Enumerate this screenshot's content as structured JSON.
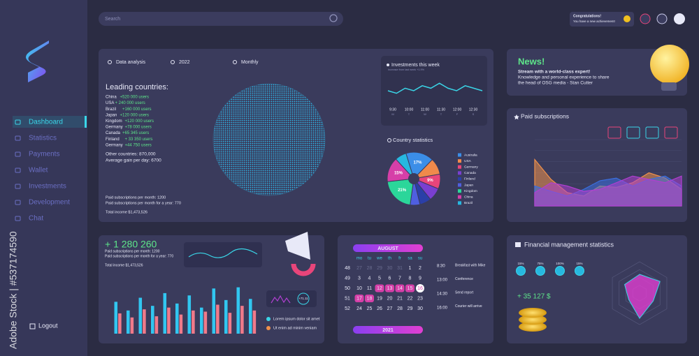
{
  "watermark": "Adobe Stock | #537174590",
  "search": {
    "placeholder": "Search"
  },
  "notification": {
    "title": "Congratulations!",
    "text": "You have a new achievement!"
  },
  "nav": [
    "Dashboard",
    "Statistics",
    "Payments",
    "Wallet",
    "Investments",
    "Development",
    "Chat"
  ],
  "logout": "Logout",
  "analysis": {
    "tabs": [
      "Data analysis",
      "2022",
      "Monthly"
    ],
    "heading": "Leading countries:",
    "countries": [
      {
        "name": "China",
        "gain": "+520 000 users"
      },
      {
        "name": "USA",
        "gain": "+ 240 000 users"
      },
      {
        "name": "Brazil",
        "gain": "+160 000 users"
      },
      {
        "name": "Japan",
        "gain": "+120 000 users"
      },
      {
        "name": "Kingdom",
        "gain": "+120 000 users"
      },
      {
        "name": "Germany",
        "gain": "+78 000 users"
      },
      {
        "name": "Canada",
        "gain": "+65 345 users"
      },
      {
        "name": "Finland",
        "gain": "+ 33 350 users"
      },
      {
        "name": "Germany",
        "gain": "+44 750 users"
      }
    ],
    "other": "Other countries: 870,000",
    "average": "Average gain per day: 6700",
    "footer": [
      "Paid subscriptions per month: 1200",
      "Paid subscriptions per month for a year: 770",
      "Total income $1,473,526"
    ]
  },
  "investments": {
    "title": "Investments this week",
    "subtitle": "Increase from last week +1.9%",
    "times": [
      "9:30",
      "10:00",
      "11:00",
      "11:30",
      "12:00",
      "12:30"
    ],
    "days": [
      "M",
      "T",
      "W",
      "T",
      "F",
      "S"
    ],
    "values": [
      5,
      4,
      6,
      5,
      7,
      6,
      8,
      6,
      5,
      7,
      6,
      5
    ],
    "ylim": [
      0,
      10
    ],
    "color": "#3ad6e8"
  },
  "country_stats": {
    "type": "pie",
    "title": "Country statistics",
    "values": [
      17,
      10,
      9,
      8,
      7,
      6,
      21,
      15,
      7
    ],
    "value_labels": [
      "17%",
      null,
      "9%",
      null,
      null,
      null,
      "21%",
      "15%",
      null
    ],
    "colors": [
      "#3b8ee8",
      "#f08a4b",
      "#e8457a",
      "#7a3fd1",
      "#2b3fa8",
      "#4f5fe0",
      "#2bd69a",
      "#d63fa8",
      "#27b8e0"
    ],
    "legend": [
      "Australia",
      "USA",
      "Germany",
      "Canada",
      "Finland",
      "Japan",
      "Kingdom",
      "China",
      "Brazil"
    ]
  },
  "news": {
    "title": "News!",
    "headline": "Stream with a world-class expert!",
    "body": [
      "Knowledge and personal experience to share",
      "the head of OSG media - Stan Cutter"
    ]
  },
  "paid_subscriptions": {
    "type": "area",
    "title": "Paid subscriptions",
    "ylim": [
      0,
      100
    ],
    "series": [
      {
        "color": "#f0914b",
        "values": [
          70,
          40,
          20,
          15,
          30,
          28,
          35,
          50,
          42,
          25
        ]
      },
      {
        "color": "#3b6fe0",
        "values": [
          30,
          22,
          15,
          25,
          38,
          42,
          30,
          40,
          45,
          30
        ]
      },
      {
        "color": "#b03fd1",
        "values": [
          20,
          35,
          30,
          22,
          25,
          35,
          45,
          40,
          35,
          45
        ]
      }
    ]
  },
  "summary": {
    "total": "+ 1 280 260",
    "lines": [
      "Paid subscriptions per month: 1200",
      "Paid subscriptions per month for a year: 770",
      "Total income $1,473,526"
    ],
    "bars": {
      "type": "bar",
      "ylim": [
        0,
        100
      ],
      "series": [
        {
          "color": "#31c6f0",
          "values": [
            55,
            40,
            62,
            48,
            70,
            52,
            66,
            45,
            78,
            58,
            80,
            60
          ]
        },
        {
          "color": "#f07a8a",
          "values": [
            35,
            28,
            42,
            30,
            45,
            33,
            40,
            38,
            50,
            36,
            48,
            40
          ]
        }
      ]
    },
    "badge": "+71.11",
    "items": [
      "Lorem ipsum dolor sit amet",
      "Ut enim ad minim veniam"
    ]
  },
  "calendar": {
    "month": "AUGUST",
    "year": "2021",
    "weekdays": [
      "mo",
      "tu",
      "we",
      "th",
      "fr",
      "sa",
      "su"
    ],
    "weeks": [
      "48",
      "49",
      "50",
      "51",
      "52"
    ],
    "days": [
      [
        "27",
        "28",
        "29",
        "30",
        "31",
        "1",
        "2"
      ],
      [
        "3",
        "4",
        "5",
        "6",
        "7",
        "8",
        "9"
      ],
      [
        "10",
        "11",
        "12",
        "13",
        "14",
        "15",
        "16"
      ],
      [
        "17",
        "18",
        "19",
        "20",
        "21",
        "22",
        "23"
      ],
      [
        "24",
        "25",
        "26",
        "27",
        "28",
        "29",
        "30"
      ]
    ],
    "muted": [
      "27",
      "28",
      "29",
      "30",
      "31"
    ],
    "selected": [
      "12",
      "13",
      "14",
      "15",
      "17",
      "18"
    ],
    "today": "16",
    "times": [
      "8:30",
      "13:00",
      "14:30",
      "16:00"
    ],
    "events": [
      "Breakfast with Mike",
      "Conference",
      "Send report",
      "Courier will arrive"
    ]
  },
  "finance": {
    "title": "Financial management statistics",
    "percents": [
      "15%",
      "75%",
      "100%",
      "15%"
    ],
    "amount": "+ 35 127 $",
    "radar": {
      "type": "radar",
      "values": [
        60,
        75,
        50,
        80,
        40,
        55
      ],
      "rlim": [
        0,
        100
      ]
    }
  }
}
